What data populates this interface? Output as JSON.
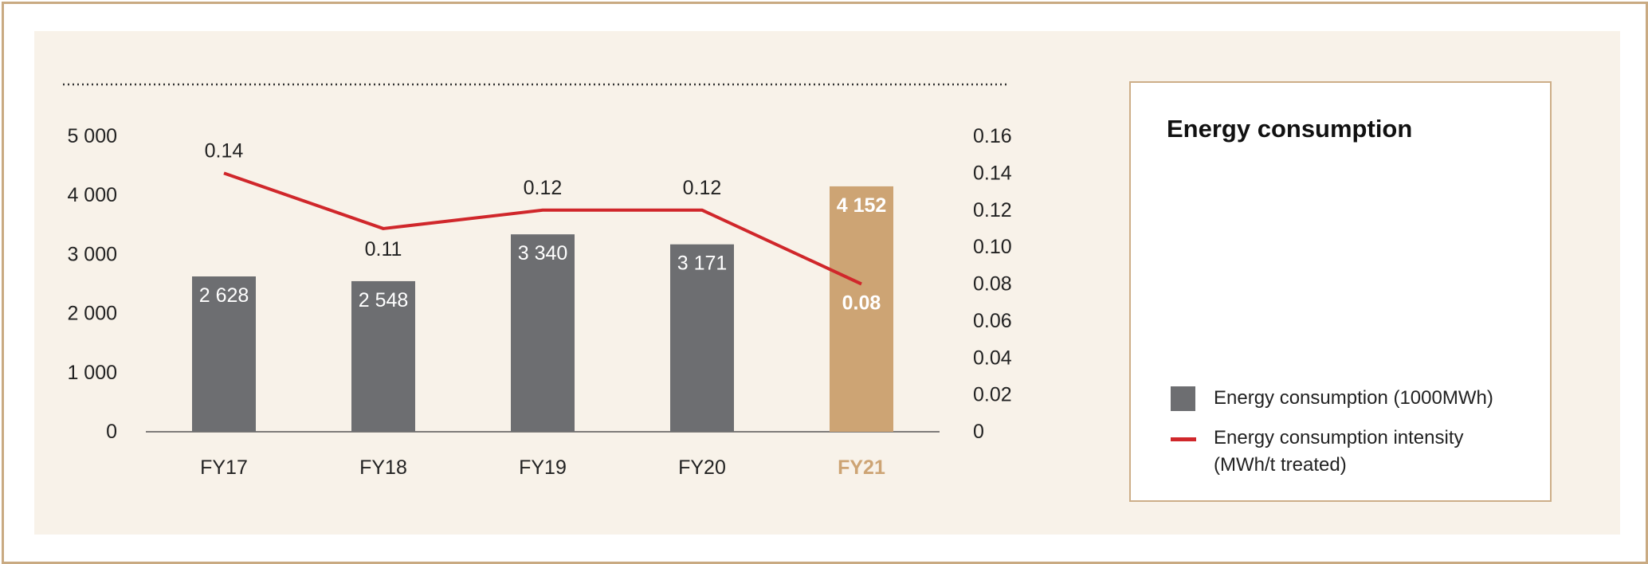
{
  "chart_data": {
    "type": "bar",
    "title": "Energy consumption",
    "categories": [
      "FY17",
      "FY18",
      "FY19",
      "FY20",
      "FY21"
    ],
    "highlight_category": "FY21",
    "series": [
      {
        "name": "Energy consumption (1000MWh)",
        "kind": "bar",
        "axis": "left",
        "values": [
          2628,
          2548,
          3340,
          3171,
          4152
        ],
        "labels": [
          "2 628",
          "2 548",
          "3 340",
          "3 171",
          "4 152"
        ],
        "color": "#6d6e71",
        "highlight_color": "#cda474"
      },
      {
        "name": "Energy consumption intensity (MWh/t treated)",
        "kind": "line",
        "axis": "right",
        "values": [
          0.14,
          0.11,
          0.12,
          0.12,
          0.08
        ],
        "labels": [
          "0.14",
          "0.11",
          "0.12",
          "0.12",
          "0.08"
        ],
        "color": "#d0272b"
      }
    ],
    "left_axis": {
      "ylim": [
        0,
        5000
      ],
      "ticks": [
        0,
        1000,
        2000,
        3000,
        4000,
        5000
      ],
      "tick_labels": [
        "0",
        "1 000",
        "2 000",
        "3 000",
        "4 000",
        "5 000"
      ]
    },
    "right_axis": {
      "ylim": [
        0,
        0.16
      ],
      "ticks": [
        0,
        0.02,
        0.04,
        0.06,
        0.08,
        0.1,
        0.12,
        0.14,
        0.16
      ],
      "tick_labels": [
        "0",
        "0.02",
        "0.04",
        "0.06",
        "0.08",
        "0.10",
        "0.12",
        "0.14",
        "0.16"
      ]
    },
    "grid": false,
    "legend_placement": "right"
  },
  "legend": {
    "title": "Energy consumption",
    "bar_label": "Energy consumption (1000MWh)",
    "line_label_1": "Energy consumption intensity",
    "line_label_2": "(MWh/t treated)"
  },
  "colors": {
    "background": "#f8f2e9",
    "frame": "#c9aa82",
    "bar": "#6d6e71",
    "highlight": "#cda474",
    "line": "#d0272b"
  }
}
